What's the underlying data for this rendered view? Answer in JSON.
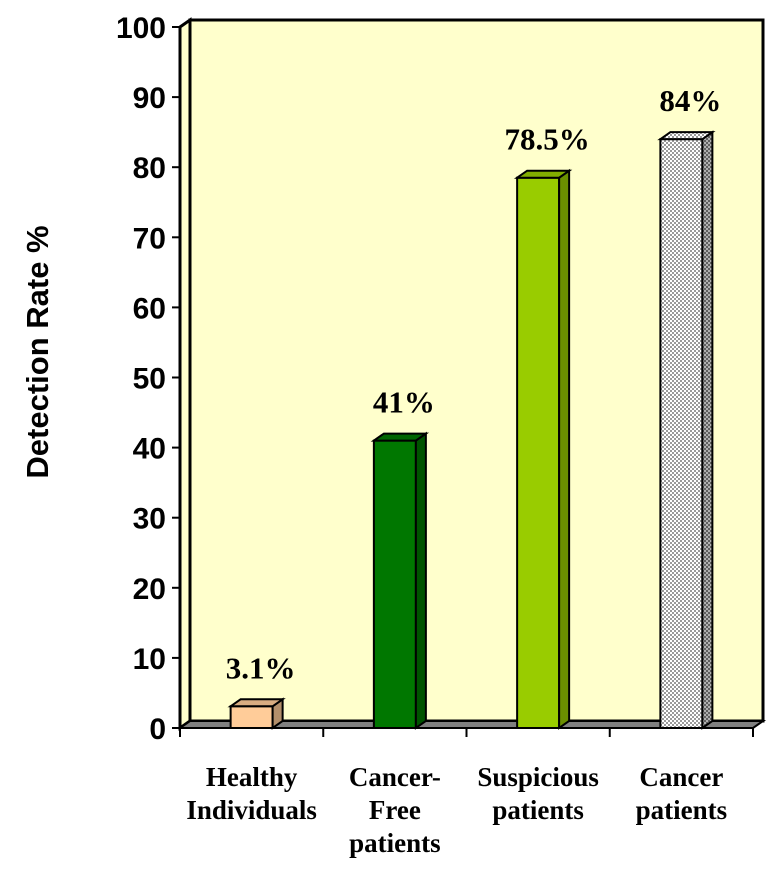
{
  "chart_data": {
    "type": "bar",
    "categories": [
      [
        "Healthy",
        "Individuals"
      ],
      [
        "Cancer-",
        "Free",
        "patients"
      ],
      [
        "Suspicious",
        "patients"
      ],
      [
        "Cancer",
        "patients"
      ]
    ],
    "values": [
      3.1,
      41,
      78.5,
      84
    ],
    "data_labels": [
      "3.1%",
      "41%",
      "78.5%",
      "84%"
    ],
    "bar_colors": [
      "#ffcc99",
      "#007700",
      "#99cc00",
      "#dcdcdc"
    ],
    "bar_patterns": [
      "solid",
      "solid",
      "solid",
      "dotted"
    ],
    "ylabel": "Detection Rate %",
    "xlabel": "",
    "title": "",
    "ylim": [
      0,
      100
    ],
    "yticks": [
      0,
      10,
      20,
      30,
      40,
      50,
      60,
      70,
      80,
      90,
      100
    ],
    "plot_background": "#ffffcc",
    "floor_color": "#808080",
    "grid": false,
    "legend": "none",
    "style": "3d-bar"
  }
}
